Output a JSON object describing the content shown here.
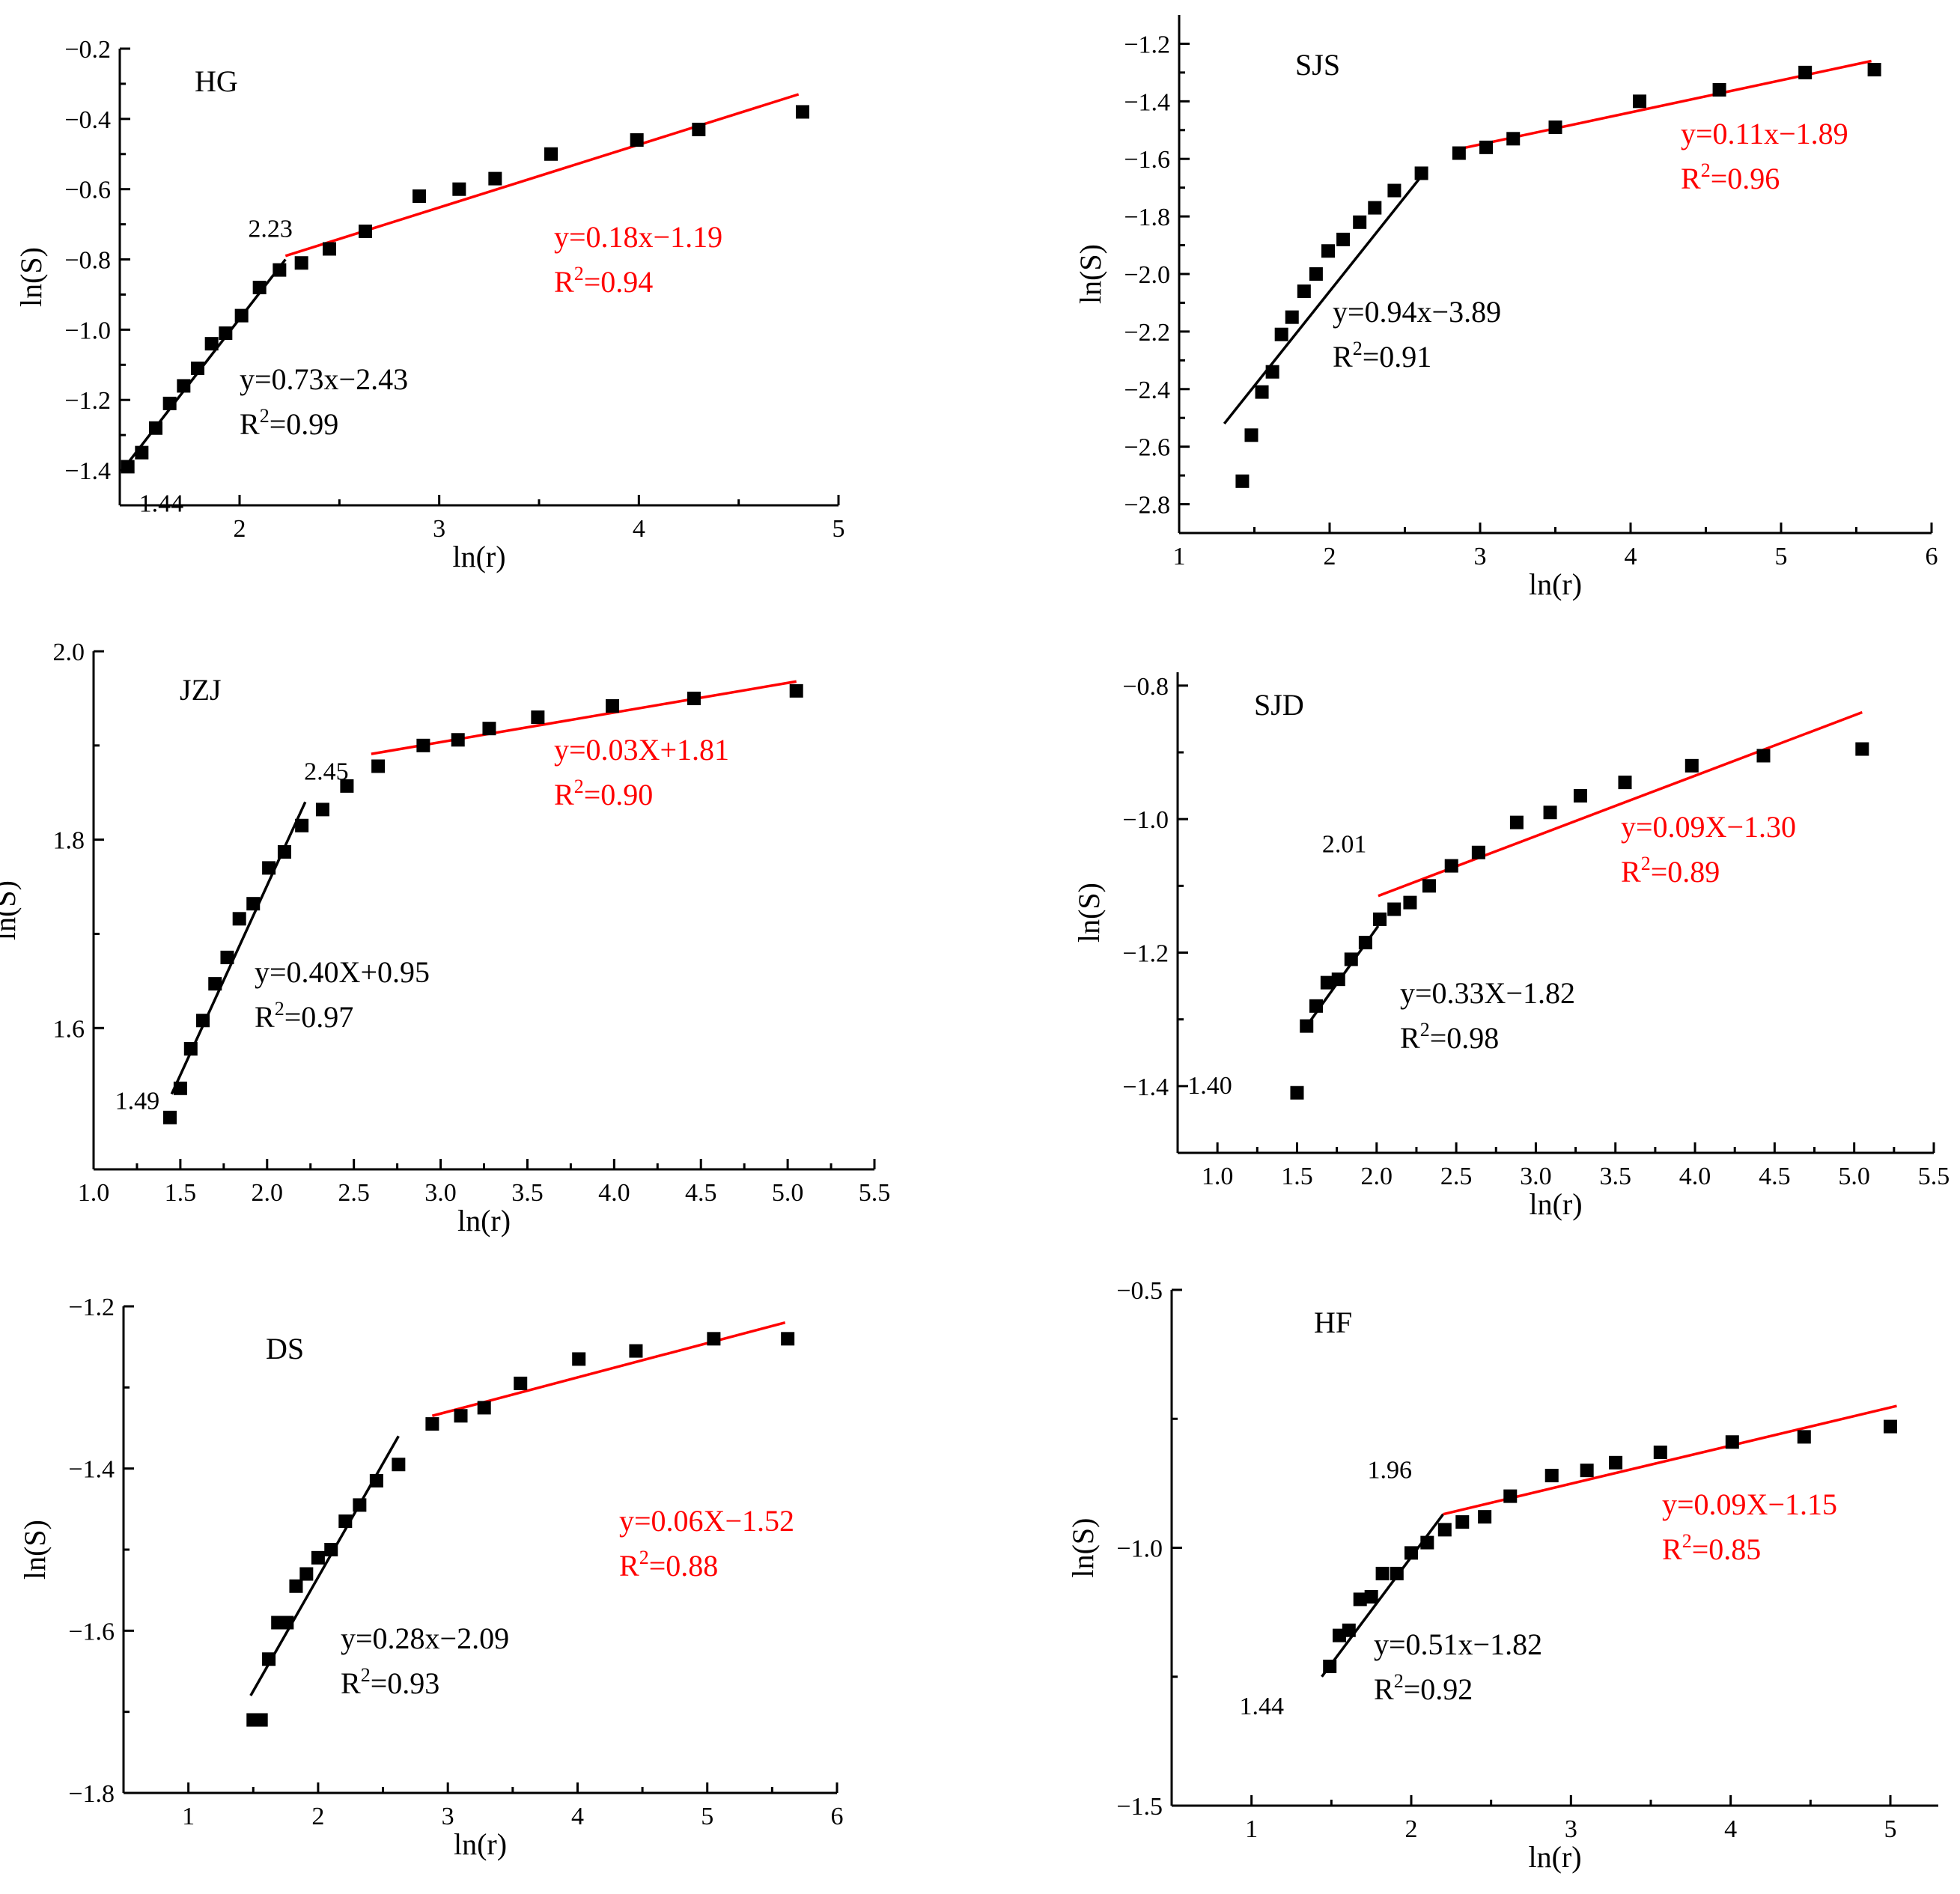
{
  "chart_data": [
    {
      "type": "scatter",
      "title": "HG",
      "xlabel": "ln(r)",
      "ylabel": "ln(S)",
      "xlim": [
        1.4,
        5.0
      ],
      "ylim": [
        -1.5,
        -0.2
      ],
      "x_ticks": [
        "2",
        "3",
        "4",
        "5"
      ],
      "y_ticks": [
        "−1.4",
        "−1.2",
        "−1.0",
        "−0.8",
        "−0.6",
        "−0.4",
        "−0.2"
      ],
      "points": [
        {
          "x": 1.44,
          "y": -1.39
        },
        {
          "x": 1.51,
          "y": -1.35
        },
        {
          "x": 1.58,
          "y": -1.28
        },
        {
          "x": 1.65,
          "y": -1.21
        },
        {
          "x": 1.72,
          "y": -1.16
        },
        {
          "x": 1.79,
          "y": -1.11
        },
        {
          "x": 1.86,
          "y": -1.04
        },
        {
          "x": 1.93,
          "y": -1.01
        },
        {
          "x": 2.01,
          "y": -0.96
        },
        {
          "x": 2.1,
          "y": -0.88
        },
        {
          "x": 2.2,
          "y": -0.83
        },
        {
          "x": 2.31,
          "y": -0.81
        },
        {
          "x": 2.45,
          "y": -0.77
        },
        {
          "x": 2.63,
          "y": -0.72
        },
        {
          "x": 2.9,
          "y": -0.62
        },
        {
          "x": 3.1,
          "y": -0.6
        },
        {
          "x": 3.28,
          "y": -0.57
        },
        {
          "x": 3.56,
          "y": -0.5
        },
        {
          "x": 3.99,
          "y": -0.46
        },
        {
          "x": 4.3,
          "y": -0.43
        },
        {
          "x": 4.82,
          "y": -0.38
        }
      ],
      "fits": [
        {
          "x0": 1.44,
          "y0": -1.38,
          "x1": 2.23,
          "y1": -0.8,
          "label": "y=0.73x−2.43",
          "r2": "0.99",
          "color": "#000000"
        },
        {
          "x0": 2.23,
          "y0": -0.79,
          "x1": 4.8,
          "y1": -0.33,
          "label": "y=0.18x−1.19",
          "r2": "0.94",
          "color": "#ff0000"
        }
      ],
      "breakpoints": [
        {
          "text": "1.44",
          "x": 1.44,
          "y": -1.39
        },
        {
          "text": "2.23",
          "x": 2.23,
          "y": -0.8
        }
      ]
    },
    {
      "type": "scatter",
      "title": "SJS",
      "xlabel": "ln(r)",
      "ylabel": "ln(S)",
      "xlim": [
        1,
        6
      ],
      "ylim": [
        -2.9,
        -1.1
      ],
      "x_ticks": [
        "1",
        "2",
        "3",
        "4",
        "5",
        "6"
      ],
      "y_ticks": [
        "−2.8",
        "−2.6",
        "−2.4",
        "−2.2",
        "−2.0",
        "−1.8",
        "−1.6",
        "−1.4",
        "−1.2"
      ],
      "points": [
        {
          "x": 1.42,
          "y": -2.72
        },
        {
          "x": 1.48,
          "y": -2.56
        },
        {
          "x": 1.55,
          "y": -2.41
        },
        {
          "x": 1.62,
          "y": -2.34
        },
        {
          "x": 1.68,
          "y": -2.21
        },
        {
          "x": 1.75,
          "y": -2.15
        },
        {
          "x": 1.83,
          "y": -2.06
        },
        {
          "x": 1.91,
          "y": -2.0
        },
        {
          "x": 1.99,
          "y": -1.92
        },
        {
          "x": 2.09,
          "y": -1.88
        },
        {
          "x": 2.2,
          "y": -1.82
        },
        {
          "x": 2.3,
          "y": -1.77
        },
        {
          "x": 2.43,
          "y": -1.71
        },
        {
          "x": 2.61,
          "y": -1.65
        },
        {
          "x": 2.86,
          "y": -1.58
        },
        {
          "x": 3.04,
          "y": -1.56
        },
        {
          "x": 3.22,
          "y": -1.53
        },
        {
          "x": 3.5,
          "y": -1.49
        },
        {
          "x": 4.06,
          "y": -1.4
        },
        {
          "x": 4.59,
          "y": -1.36
        },
        {
          "x": 5.16,
          "y": -1.3
        },
        {
          "x": 5.62,
          "y": -1.29
        }
      ],
      "fits": [
        {
          "x0": 1.3,
          "y0": -2.52,
          "x1": 2.61,
          "y1": -1.66,
          "label": "y=0.94x−3.89",
          "r2": "0.91",
          "color": "#000000"
        },
        {
          "x0": 2.82,
          "y0": -1.57,
          "x1": 5.6,
          "y1": -1.26,
          "label": "y=0.11x−1.89",
          "r2": "0.96",
          "color": "#ff0000"
        }
      ],
      "breakpoints": []
    },
    {
      "type": "scatter",
      "title": "JZJ",
      "xlabel": "ln(r)",
      "ylabel": "ln(S)",
      "xlim": [
        1.0,
        5.5
      ],
      "ylim": [
        1.45,
        2.0
      ],
      "x_ticks": [
        "1.0",
        "1.5",
        "2.0",
        "2.5",
        "3.0",
        "3.5",
        "4.0",
        "4.5",
        "5.0",
        "5.5"
      ],
      "y_ticks": [
        "1.6",
        "1.8",
        "2.0"
      ],
      "points": [
        {
          "x": 1.44,
          "y": 1.505
        },
        {
          "x": 1.5,
          "y": 1.536
        },
        {
          "x": 1.56,
          "y": 1.578
        },
        {
          "x": 1.63,
          "y": 1.608
        },
        {
          "x": 1.7,
          "y": 1.647
        },
        {
          "x": 1.77,
          "y": 1.675
        },
        {
          "x": 1.84,
          "y": 1.716
        },
        {
          "x": 1.92,
          "y": 1.732
        },
        {
          "x": 2.01,
          "y": 1.77
        },
        {
          "x": 2.1,
          "y": 1.787
        },
        {
          "x": 2.2,
          "y": 1.815
        },
        {
          "x": 2.32,
          "y": 1.832
        },
        {
          "x": 2.46,
          "y": 1.857
        },
        {
          "x": 2.64,
          "y": 1.878
        },
        {
          "x": 2.9,
          "y": 1.9
        },
        {
          "x": 3.1,
          "y": 1.906
        },
        {
          "x": 3.28,
          "y": 1.918
        },
        {
          "x": 3.56,
          "y": 1.93
        },
        {
          "x": 3.99,
          "y": 1.942
        },
        {
          "x": 4.46,
          "y": 1.95
        },
        {
          "x": 5.05,
          "y": 1.958
        }
      ],
      "fits": [
        {
          "x0": 1.45,
          "y0": 1.53,
          "x1": 2.22,
          "y1": 1.84,
          "label": "y=0.40X+0.95",
          "r2": "0.97",
          "color": "#000000"
        },
        {
          "x0": 2.6,
          "y0": 1.891,
          "x1": 5.05,
          "y1": 1.968,
          "label": "y=0.03X+1.81",
          "r2": "0.90",
          "color": "#ff0000"
        }
      ],
      "breakpoints": [
        {
          "text": "1.49",
          "x": 1.49,
          "y": 1.53
        },
        {
          "text": "2.45",
          "x": 2.45,
          "y": 1.84
        }
      ]
    },
    {
      "type": "scatter",
      "title": "SJD",
      "xlabel": "ln(r)",
      "ylabel": "ln(S)",
      "xlim": [
        0.75,
        5.5
      ],
      "ylim": [
        -1.5,
        -0.78
      ],
      "x_ticks": [
        "1.0",
        "1.5",
        "2.0",
        "2.5",
        "3.0",
        "3.5",
        "4.0",
        "4.5",
        "5.0",
        "5.5"
      ],
      "y_ticks": [
        "−1.4",
        "−1.2",
        "−1.0",
        "−0.8"
      ],
      "points": [
        {
          "x": 1.5,
          "y": -1.41
        },
        {
          "x": 1.56,
          "y": -1.31
        },
        {
          "x": 1.62,
          "y": -1.28
        },
        {
          "x": 1.69,
          "y": -1.245
        },
        {
          "x": 1.76,
          "y": -1.24
        },
        {
          "x": 1.84,
          "y": -1.21
        },
        {
          "x": 1.93,
          "y": -1.185
        },
        {
          "x": 2.02,
          "y": -1.15
        },
        {
          "x": 2.11,
          "y": -1.135
        },
        {
          "x": 2.21,
          "y": -1.125
        },
        {
          "x": 2.33,
          "y": -1.1
        },
        {
          "x": 2.47,
          "y": -1.07
        },
        {
          "x": 2.64,
          "y": -1.05
        },
        {
          "x": 2.88,
          "y": -1.005
        },
        {
          "x": 3.09,
          "y": -0.99
        },
        {
          "x": 3.28,
          "y": -0.965
        },
        {
          "x": 3.56,
          "y": -0.945
        },
        {
          "x": 3.98,
          "y": -0.92
        },
        {
          "x": 4.43,
          "y": -0.905
        },
        {
          "x": 5.05,
          "y": -0.895
        }
      ],
      "fits": [
        {
          "x0": 1.56,
          "y0": -1.31,
          "x1": 2.01,
          "y1": -1.16,
          "label": "y=0.33X−1.82",
          "r2": "0.98",
          "color": "#000000"
        },
        {
          "x0": 2.01,
          "y0": -1.115,
          "x1": 5.05,
          "y1": -0.84,
          "label": "y=0.09X−1.30",
          "r2": "0.89",
          "color": "#ff0000"
        }
      ],
      "breakpoints": [
        {
          "text": "1.40",
          "x": 1.4,
          "y": -1.4
        },
        {
          "text": "2.01",
          "x": 2.01,
          "y": -1.1
        }
      ]
    },
    {
      "type": "scatter",
      "title": "DS",
      "xlabel": "ln(r)",
      "ylabel": "ln(S)",
      "xlim": [
        0.5,
        6
      ],
      "ylim": [
        -1.8,
        -1.2
      ],
      "x_ticks": [
        "1",
        "2",
        "3",
        "4",
        "5",
        "6"
      ],
      "y_ticks": [
        "−1.8",
        "−1.6",
        "−1.4",
        "−1.2"
      ],
      "points": [
        {
          "x": 1.5,
          "y": -1.71
        },
        {
          "x": 1.56,
          "y": -1.71
        },
        {
          "x": 1.62,
          "y": -1.635
        },
        {
          "x": 1.69,
          "y": -1.59
        },
        {
          "x": 1.76,
          "y": -1.59
        },
        {
          "x": 1.83,
          "y": -1.545
        },
        {
          "x": 1.91,
          "y": -1.53
        },
        {
          "x": 2.0,
          "y": -1.51
        },
        {
          "x": 2.1,
          "y": -1.5
        },
        {
          "x": 2.21,
          "y": -1.465
        },
        {
          "x": 2.32,
          "y": -1.445
        },
        {
          "x": 2.45,
          "y": -1.415
        },
        {
          "x": 2.62,
          "y": -1.395
        },
        {
          "x": 2.88,
          "y": -1.345
        },
        {
          "x": 3.1,
          "y": -1.335
        },
        {
          "x": 3.28,
          "y": -1.325
        },
        {
          "x": 3.56,
          "y": -1.295
        },
        {
          "x": 4.01,
          "y": -1.265
        },
        {
          "x": 4.45,
          "y": -1.255
        },
        {
          "x": 5.05,
          "y": -1.24
        },
        {
          "x": 5.62,
          "y": -1.24
        }
      ],
      "fits": [
        {
          "x0": 1.48,
          "y0": -1.68,
          "x1": 2.62,
          "y1": -1.36,
          "label": "y=0.28x−2.09",
          "r2": "0.93",
          "color": "#000000"
        },
        {
          "x0": 2.88,
          "y0": -1.335,
          "x1": 5.6,
          "y1": -1.22,
          "label": "y=0.06X−1.52",
          "r2": "0.88",
          "color": "#ff0000"
        }
      ],
      "breakpoints": []
    },
    {
      "type": "scatter",
      "title": "HF",
      "xlabel": "ln(r)",
      "ylabel": "ln(S)",
      "xlim": [
        0.5,
        5.3
      ],
      "ylim": [
        -1.5,
        -0.5
      ],
      "x_ticks": [
        "1",
        "2",
        "3",
        "4",
        "5"
      ],
      "y_ticks": [
        "−1.5",
        "−1.0",
        "−0.5"
      ],
      "points": [
        {
          "x": 1.49,
          "y": -1.23
        },
        {
          "x": 1.55,
          "y": -1.17
        },
        {
          "x": 1.61,
          "y": -1.16
        },
        {
          "x": 1.68,
          "y": -1.1
        },
        {
          "x": 1.75,
          "y": -1.095
        },
        {
          "x": 1.82,
          "y": -1.05
        },
        {
          "x": 1.91,
          "y": -1.05
        },
        {
          "x": 2.0,
          "y": -1.01
        },
        {
          "x": 2.1,
          "y": -0.99
        },
        {
          "x": 2.21,
          "y": -0.965
        },
        {
          "x": 2.32,
          "y": -0.95
        },
        {
          "x": 2.46,
          "y": -0.94
        },
        {
          "x": 2.62,
          "y": -0.9
        },
        {
          "x": 2.88,
          "y": -0.86
        },
        {
          "x": 3.1,
          "y": -0.85
        },
        {
          "x": 3.28,
          "y": -0.835
        },
        {
          "x": 3.56,
          "y": -0.815
        },
        {
          "x": 4.01,
          "y": -0.795
        },
        {
          "x": 4.46,
          "y": -0.785
        },
        {
          "x": 5.0,
          "y": -0.765
        }
      ],
      "fits": [
        {
          "x0": 1.44,
          "y0": -1.25,
          "x1": 2.2,
          "y1": -0.935,
          "label": "y=0.51x−1.82",
          "r2": "0.92",
          "color": "#000000"
        },
        {
          "x0": 2.2,
          "y0": -0.935,
          "x1": 5.04,
          "y1": -0.725,
          "label": "y=0.09X−1.15",
          "r2": "0.85",
          "color": "#ff0000"
        }
      ],
      "breakpoints": [
        {
          "text": "1.44",
          "x": 1.44,
          "y": -1.25
        },
        {
          "text": "1.96",
          "x": 1.96,
          "y": -0.93
        }
      ]
    }
  ]
}
